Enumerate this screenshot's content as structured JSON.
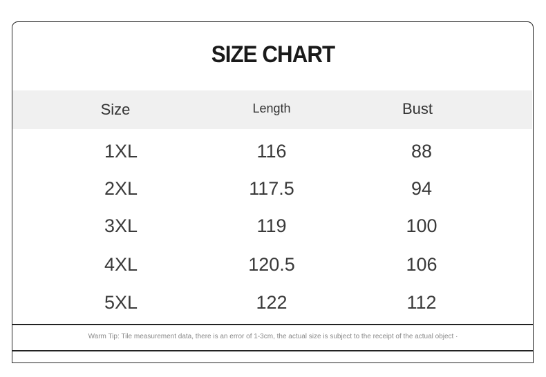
{
  "title": "SIZE CHART",
  "headers": [
    "Size",
    "Length",
    "Bust"
  ],
  "rows": [
    [
      "1XL",
      "116",
      "88"
    ],
    [
      "2XL",
      "117.5",
      "94"
    ],
    [
      "3XL",
      "119",
      "100"
    ],
    [
      "4XL",
      "120.5",
      "106"
    ],
    [
      "5XL",
      "122",
      "112"
    ]
  ],
  "tip": "Warm Tip: Tile measurement data, there is an error of 1-3cm, the actual size is subject to the receipt of the actual object ·"
}
